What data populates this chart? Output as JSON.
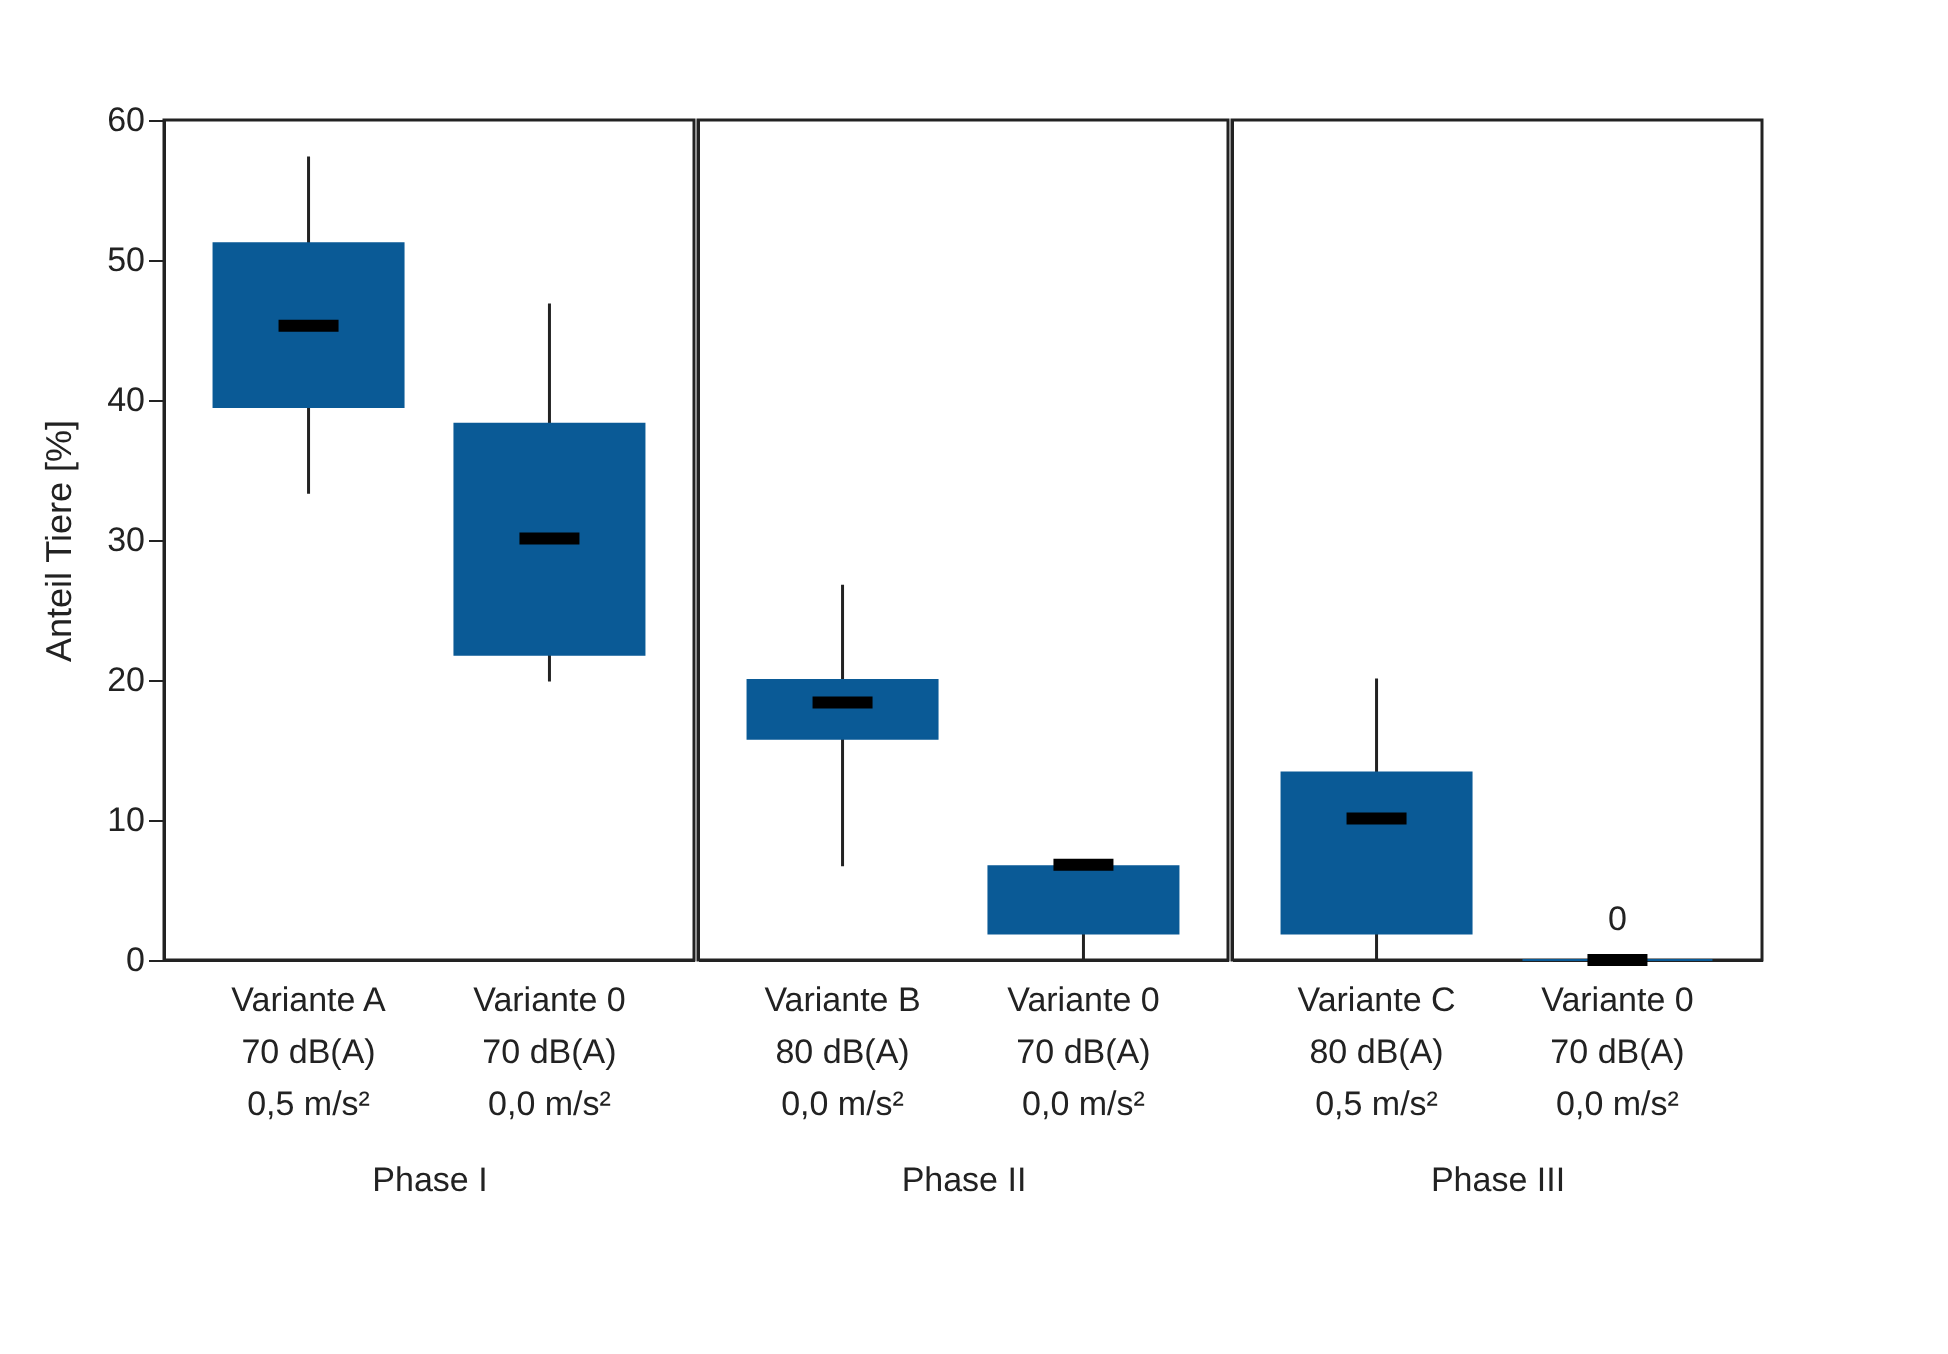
{
  "chart_data": [
    {
      "type": "box",
      "ylabel": "Anteil Tiere [%]",
      "xlabel": "Phase I",
      "categories": [
        "Variante A\n70 dB(A)\n0,5 m/s²",
        "Variante 0\n70 dB(A)\n0,0 m/s²"
      ],
      "ylim": [
        0,
        60
      ],
      "yticks": [
        0,
        10,
        20,
        30,
        40,
        50,
        60
      ],
      "series": [
        {
          "color": "#0a5a96",
          "boxes": [
            {
              "low": 33.3,
              "q1": 39.5,
              "median": 45.3,
              "q3": 51.2,
              "high": 57.4
            },
            {
              "low": 19.9,
              "q1": 21.8,
              "median": 30.1,
              "q3": 38.3,
              "high": 46.9
            }
          ]
        }
      ]
    },
    {
      "type": "box",
      "xlabel": "Phase II",
      "categories": [
        "Variante B\n80 dB(A)\n0,0 m/s²",
        "Variante 0\n70 dB(A)\n0,0 m/s²"
      ],
      "ylim": [
        0,
        60
      ],
      "tick_labels": "x",
      "series": [
        {
          "color": "#0a5a96",
          "boxes": [
            {
              "low": 6.7,
              "q1": 15.8,
              "median": 18.4,
              "q3": 20.0,
              "high": 26.8
            },
            {
              "low": 0,
              "q1": 1.9,
              "median": 6.8,
              "q3": 6.7,
              "high": 6.7
            }
          ]
        }
      ]
    },
    {
      "type": "box",
      "xlabel": "Phase III",
      "categories": [
        "Variante C\n80 dB(A)\n0,5 m/s²",
        "Variante 0\n70 dB(A)\n0,0 m/s²"
      ],
      "ylim": [
        0,
        60
      ],
      "tick_labels": "x",
      "annotations": [
        "0"
      ],
      "series": [
        {
          "color": "#0a5a96",
          "boxes": [
            {
              "low": 0,
              "q1": 1.9,
              "median": 10.1,
              "q3": 13.4,
              "high": 20.1
            },
            {
              "low": 0,
              "q1": 0,
              "median": 0,
              "q3": 0,
              "high": 0
            }
          ]
        }
      ]
    }
  ]
}
